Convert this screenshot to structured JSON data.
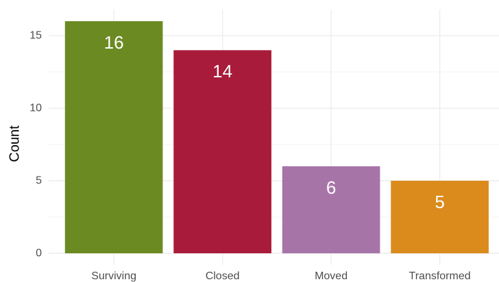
{
  "chart_data": {
    "type": "bar",
    "y_label": "Count",
    "categories": [
      "Surviving",
      "Closed",
      "Moved",
      "Transformed"
    ],
    "values": [
      16,
      14,
      6,
      5
    ],
    "colors": [
      "#6b8a22",
      "#a91b3a",
      "#a774a8",
      "#db8a1c"
    ],
    "ylim": [
      -0.8,
      16.8
    ],
    "yticks": [
      0,
      5,
      10,
      15
    ],
    "grid": true
  }
}
